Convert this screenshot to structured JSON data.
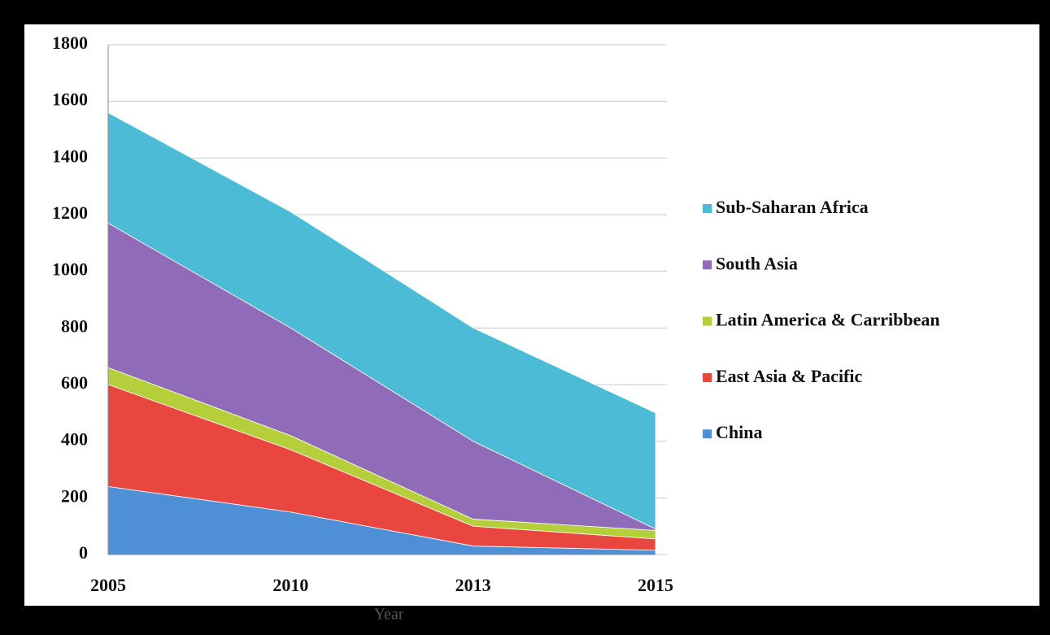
{
  "chart_data": {
    "type": "stacked_area",
    "x_label": "Year",
    "categories": [
      "2005",
      "2010",
      "2013",
      "2015"
    ],
    "series": [
      {
        "name": "China",
        "color": "#4f8fd6",
        "values": [
          240,
          150,
          30,
          15
        ]
      },
      {
        "name": "East Asia & Pacific",
        "color": "#e8463f",
        "values": [
          360,
          220,
          70,
          40
        ]
      },
      {
        "name": "Latin America & Carribbean",
        "color": "#b5cf3b",
        "values": [
          60,
          50,
          25,
          30
        ]
      },
      {
        "name": "South Asia",
        "color": "#8f6bb8",
        "values": [
          510,
          380,
          275,
          5
        ]
      },
      {
        "name": "Sub-Saharan Africa",
        "color": "#4bbbd6",
        "values": [
          390,
          410,
          400,
          410
        ]
      }
    ],
    "ylim": [
      0,
      1800
    ],
    "yticks": [
      0,
      200,
      400,
      600,
      800,
      1000,
      1200,
      1400,
      1600,
      1800
    ],
    "grid": true,
    "legend": "right"
  }
}
